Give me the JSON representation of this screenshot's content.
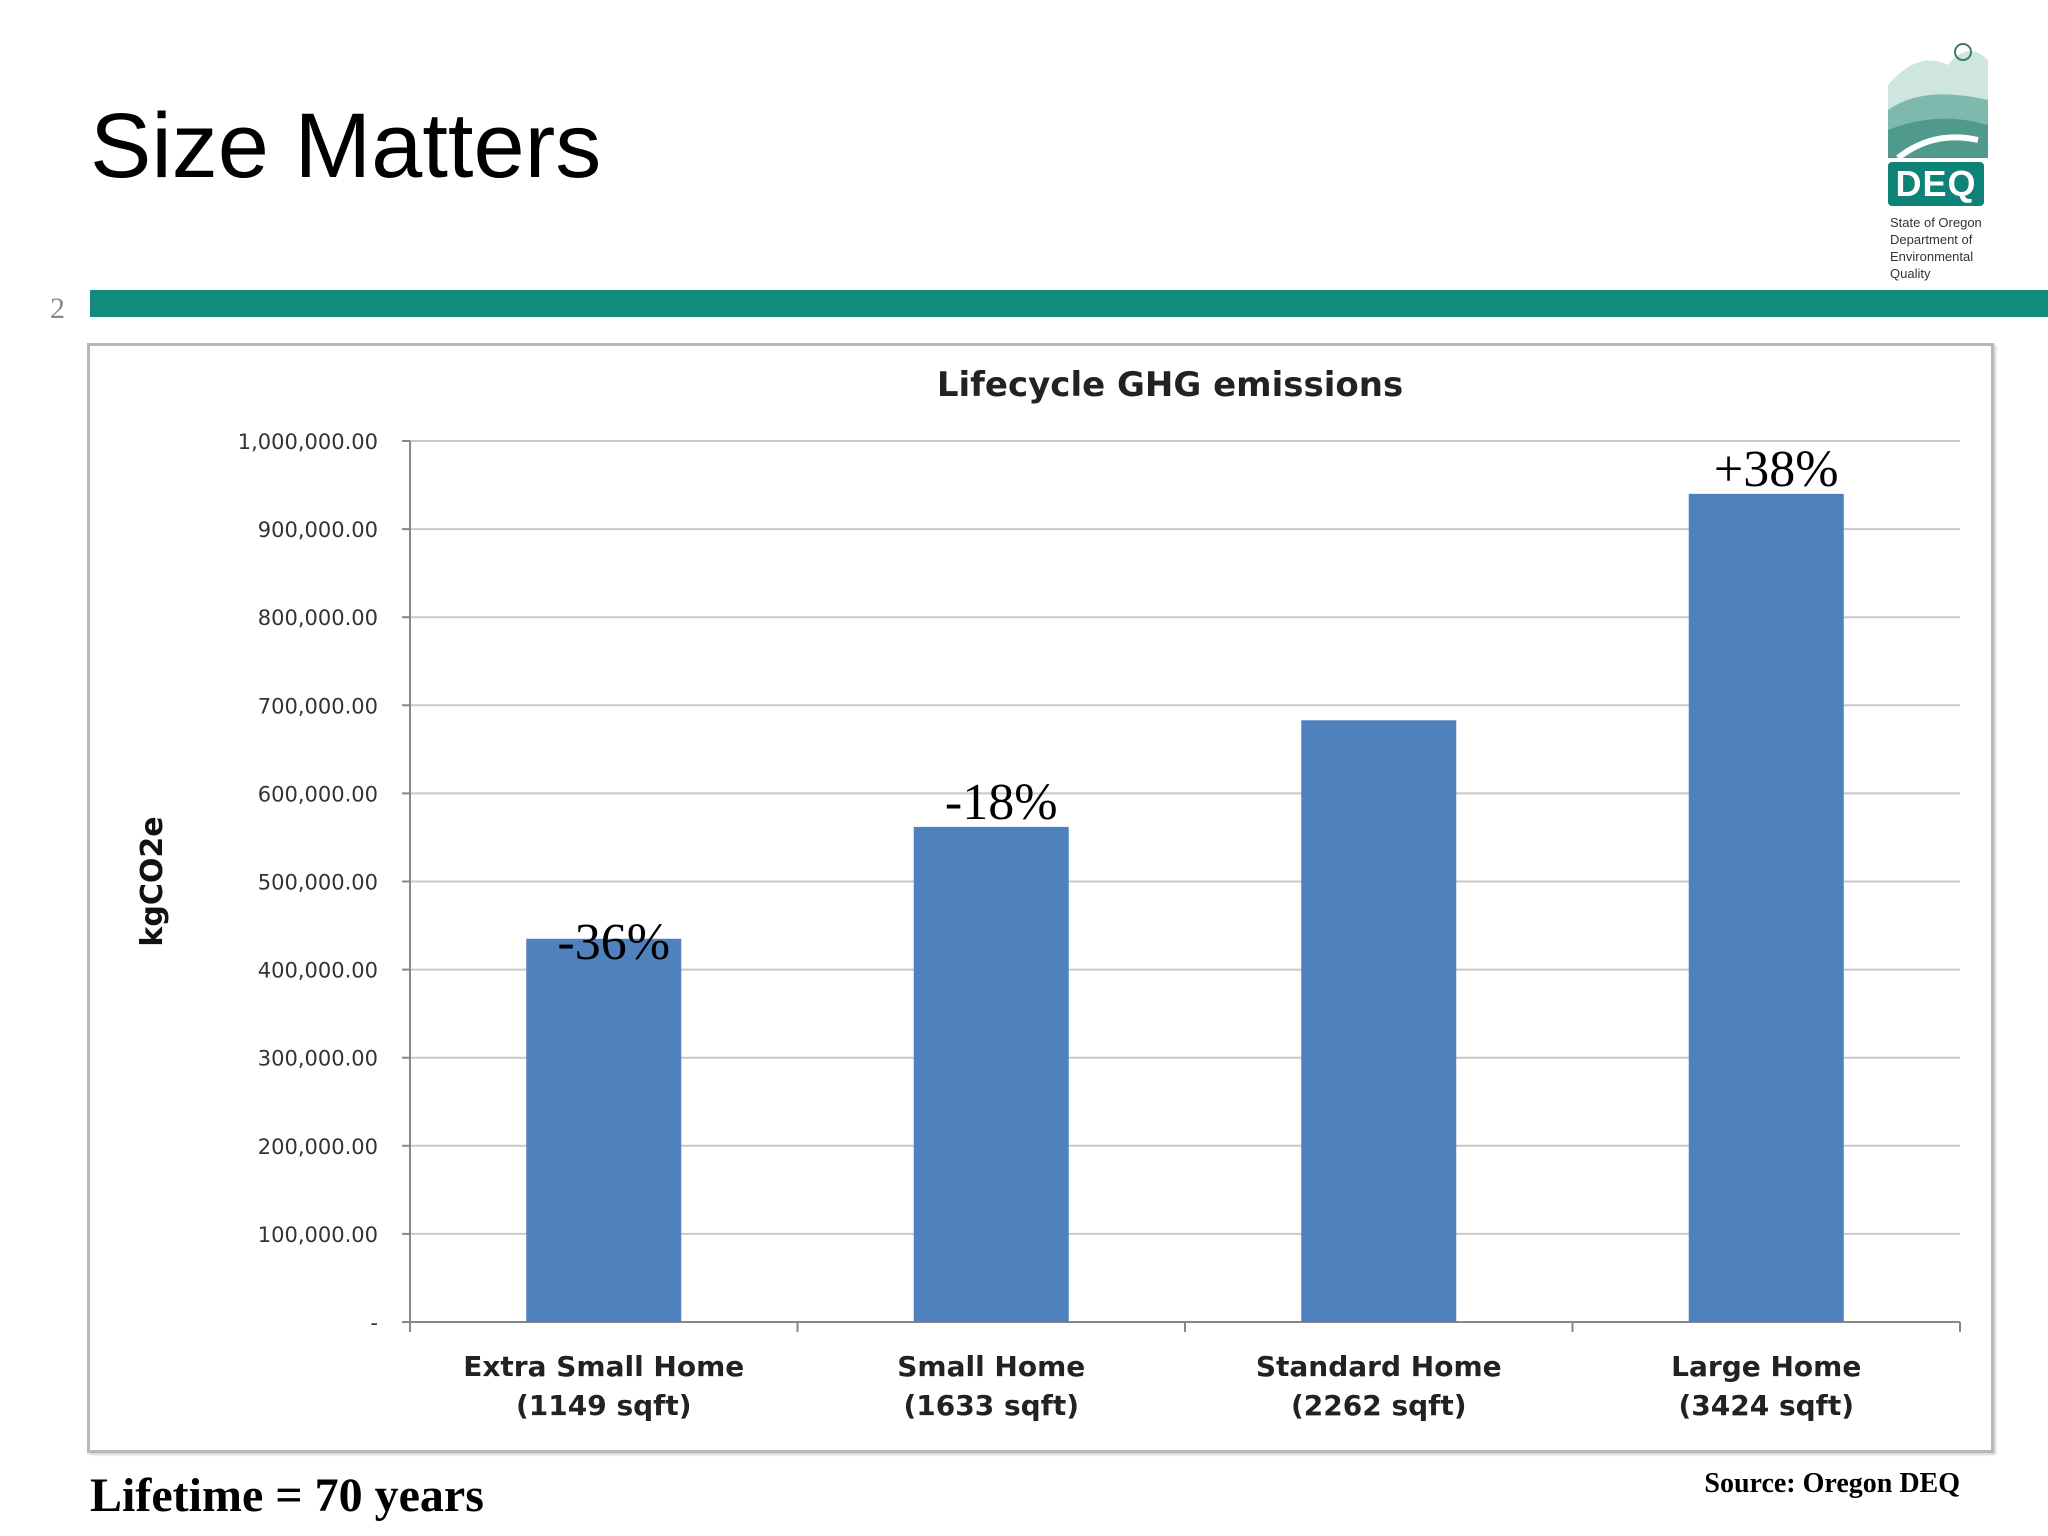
{
  "slide": {
    "title": "Size Matters",
    "number": "2",
    "footer_left": "Lifetime = 70 years",
    "footer_right": "Source: Oregon DEQ",
    "accent_color": "#128b7d"
  },
  "logo": {
    "badge": "DEQ",
    "lines": [
      "State of Oregon",
      "Department of",
      "Environmental",
      "Quality"
    ],
    "icon": "landscape-icon"
  },
  "chart_data": {
    "type": "bar",
    "title": "Lifecycle GHG emissions",
    "ylabel": "kgCO2e",
    "xlabel": "",
    "ylim": [
      0,
      1000000
    ],
    "yticks": [
      {
        "value": 0,
        "label": "-"
      },
      {
        "value": 100000,
        "label": "100,000.00"
      },
      {
        "value": 200000,
        "label": "200,000.00"
      },
      {
        "value": 300000,
        "label": "300,000.00"
      },
      {
        "value": 400000,
        "label": "400,000.00"
      },
      {
        "value": 500000,
        "label": "500,000.00"
      },
      {
        "value": 600000,
        "label": "600,000.00"
      },
      {
        "value": 700000,
        "label": "700,000.00"
      },
      {
        "value": 800000,
        "label": "800,000.00"
      },
      {
        "value": 900000,
        "label": "900,000.00"
      },
      {
        "value": 1000000,
        "label": "1,000,000.00"
      }
    ],
    "categories": [
      {
        "line1": "Extra Small Home",
        "line2": "(1149 sqft)"
      },
      {
        "line1": "Small Home",
        "line2": "(1633 sqft)"
      },
      {
        "line1": "Standard Home",
        "line2": "(2262 sqft)"
      },
      {
        "line1": "Large Home",
        "line2": "(3424 sqft)"
      }
    ],
    "values": [
      435000,
      562000,
      683000,
      940000
    ],
    "annotations": [
      "-36%",
      "-18%",
      "",
      "+38%"
    ],
    "grid": true,
    "legend": "none",
    "bar_color": "#4f81bd"
  }
}
